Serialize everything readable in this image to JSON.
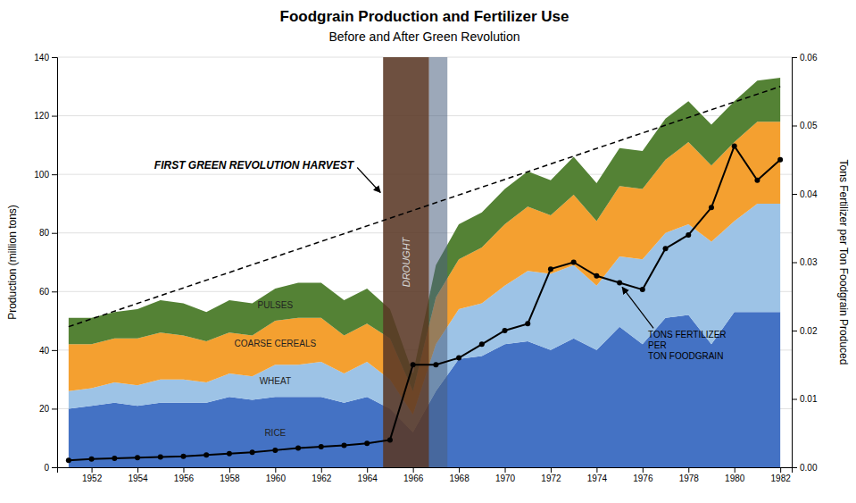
{
  "chart_data": {
    "type": "area",
    "stacked": true,
    "title": "Foodgrain Production and Fertilizer Use",
    "subtitle": "Before and After Green Revolution",
    "ylabel": "Production (million tons)",
    "y2label": "Tons Fertilizer per Ton Foodgrain Produced",
    "x": [
      1951,
      1952,
      1953,
      1954,
      1955,
      1956,
      1957,
      1958,
      1959,
      1960,
      1961,
      1962,
      1963,
      1964,
      1965,
      1966,
      1967,
      1968,
      1969,
      1970,
      1971,
      1972,
      1973,
      1974,
      1975,
      1976,
      1977,
      1978,
      1979,
      1980,
      1981,
      1982
    ],
    "xlim": [
      1950.5,
      1982.5
    ],
    "xticks": [
      1952,
      1954,
      1956,
      1958,
      1960,
      1962,
      1964,
      1966,
      1968,
      1970,
      1972,
      1974,
      1976,
      1978,
      1980,
      1982
    ],
    "ylim": [
      0,
      140
    ],
    "yticks": [
      0,
      20,
      40,
      60,
      80,
      100,
      120,
      140
    ],
    "y2lim": [
      0,
      0.06
    ],
    "y2ticks": [
      {
        "value": 0,
        "label": "0.00"
      },
      0.01,
      0.02,
      0.03,
      0.04,
      0.05,
      0.06
    ],
    "grid": true,
    "series": [
      {
        "name": "RICE",
        "type": "area",
        "color": "#4472C4",
        "values": [
          20,
          21,
          22,
          21,
          22,
          22,
          22,
          24,
          23,
          24,
          24,
          24,
          22,
          24,
          20,
          12,
          26,
          37,
          38,
          42,
          43,
          40,
          44,
          40,
          48,
          42,
          51,
          52,
          42,
          53,
          53,
          53
        ]
      },
      {
        "name": "WHEAT",
        "type": "area",
        "color": "#9DC3E6",
        "values": [
          6,
          6,
          7,
          7,
          8,
          8,
          7,
          8,
          8,
          11,
          11,
          12,
          10,
          12,
          10,
          6,
          16,
          17,
          18,
          20,
          24,
          26,
          25,
          22,
          24,
          29,
          29,
          31,
          35,
          31,
          37,
          37
        ]
      },
      {
        "name": "COARSE CEREALS",
        "type": "area",
        "color": "#F4A030",
        "values": [
          16,
          15,
          15,
          16,
          16,
          15,
          14,
          14,
          14,
          15,
          16,
          15,
          13,
          13,
          14,
          8,
          16,
          17,
          19,
          21,
          22,
          20,
          24,
          22,
          24,
          24,
          25,
          28,
          26,
          27,
          28,
          28
        ]
      },
      {
        "name": "PULSES",
        "type": "area",
        "color": "#548235",
        "values": [
          9,
          9,
          9,
          10,
          11,
          11,
          10,
          11,
          11,
          11,
          12,
          12,
          12,
          12,
          10,
          6,
          11,
          12,
          12,
          12,
          12,
          12,
          13,
          13,
          13,
          13,
          14,
          14,
          14,
          14,
          14,
          15
        ]
      },
      {
        "type": "line",
        "line_style": "dashed",
        "color": "#000000",
        "x": [
          1951,
          1982
        ],
        "values": [
          48,
          130
        ]
      },
      {
        "type": "line",
        "axis": "y2",
        "color": "#000000",
        "marker": "circle",
        "values": [
          0.001,
          0.0012,
          0.0013,
          0.0014,
          0.0015,
          0.0016,
          0.0018,
          0.002,
          0.0022,
          0.0025,
          0.0028,
          0.003,
          0.0032,
          0.0035,
          0.004,
          0.015,
          0.015,
          0.016,
          0.018,
          0.02,
          0.021,
          0.029,
          0.03,
          0.028,
          0.027,
          0.026,
          0.032,
          0.034,
          0.038,
          0.047,
          0.042,
          0.045
        ]
      }
    ],
    "spans": [
      {
        "x": [
          1964.7,
          1966.7
        ],
        "color": "#5A3825"
      },
      {
        "x": [
          1966.7,
          1967.5
        ],
        "color": "#4A6080"
      }
    ],
    "annotations": [
      {
        "text": "DROUGHT"
      },
      {
        "text": [
          "TONS FERTILIZER",
          "PER",
          "TON FOODGRAIN"
        ]
      },
      {
        "text": "FIRST GREEN REVOLUTION HARVEST"
      }
    ]
  }
}
